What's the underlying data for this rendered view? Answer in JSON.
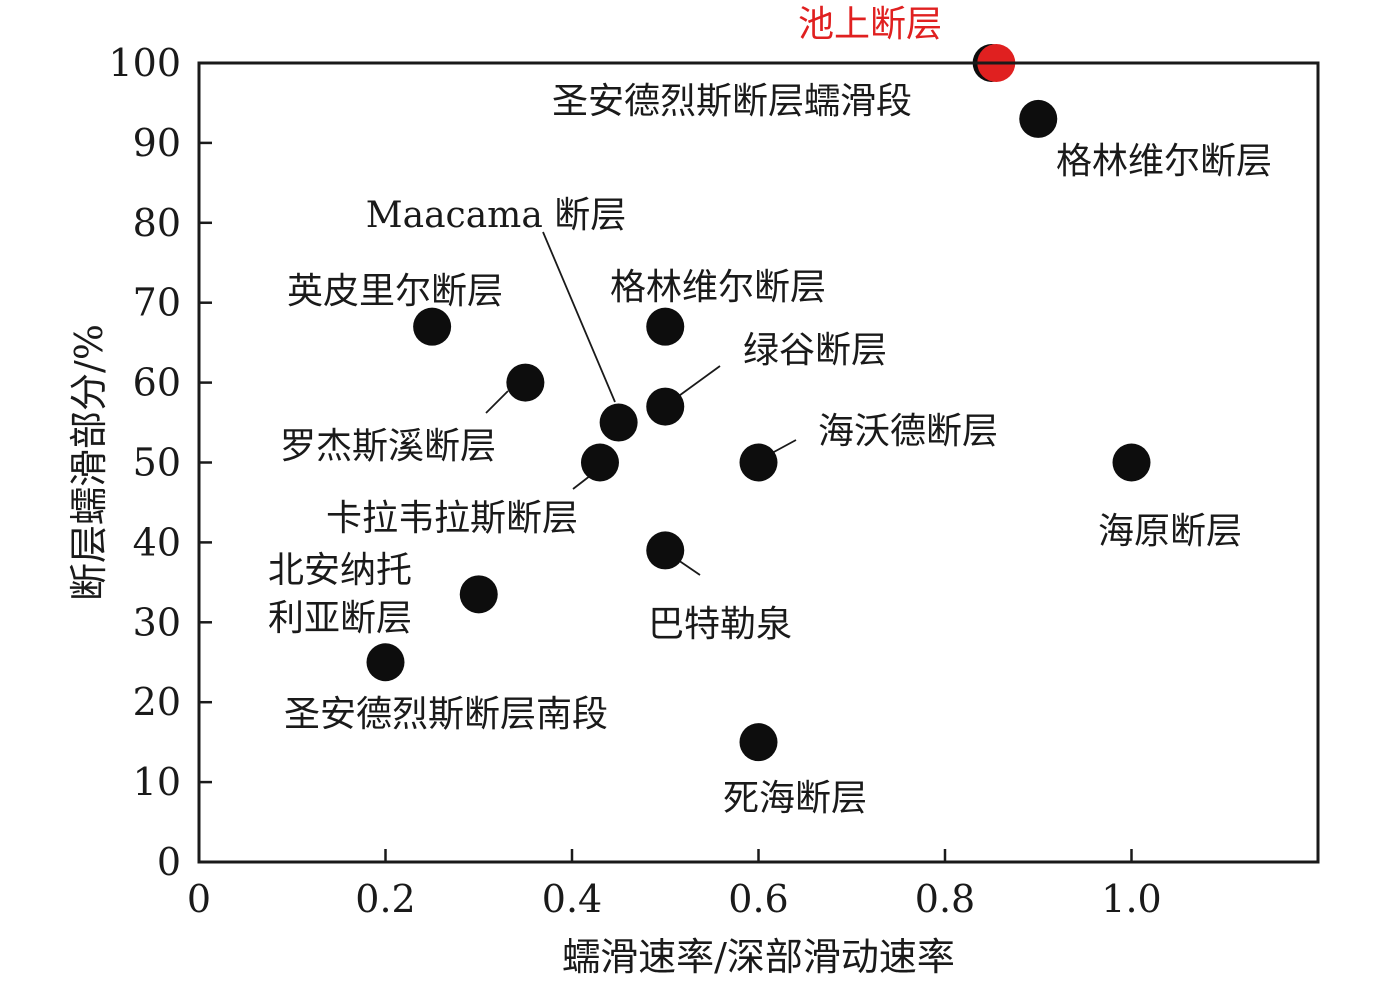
{
  "chart_data": {
    "type": "scatter",
    "title": "",
    "xlabel": "蠕滑速率/深部滑动速率",
    "ylabel": "断层蠕滑部分/%",
    "xlim": [
      0,
      1.2
    ],
    "ylim": [
      0,
      100
    ],
    "x_ticks": [
      "0",
      "0.2",
      "0.4",
      "0.6",
      "0.8",
      "1.0"
    ],
    "y_ticks": [
      "0",
      "10",
      "20",
      "30",
      "40",
      "50",
      "60",
      "70",
      "80",
      "90",
      "100"
    ],
    "grid": false,
    "legend": "none",
    "colors": {
      "default": "#0d0d0d",
      "highlight": "#e02020"
    },
    "points": [
      {
        "x": 0.85,
        "y": 100,
        "label": "圣安德烈斯断层蠕滑段"
      },
      {
        "x": 0.855,
        "y": 100,
        "label": "池上断层",
        "highlight": true
      },
      {
        "x": 0.9,
        "y": 93,
        "label": "格林维尔断层"
      },
      {
        "x": 0.45,
        "y": 55,
        "label": "Maacama 断层"
      },
      {
        "x": 0.25,
        "y": 67,
        "label": "英皮里尔断层"
      },
      {
        "x": 0.5,
        "y": 67,
        "label": "格林维尔断层"
      },
      {
        "x": 0.5,
        "y": 57,
        "label": "绿谷断层"
      },
      {
        "x": 0.35,
        "y": 60,
        "label": "罗杰斯溪断层"
      },
      {
        "x": 0.6,
        "y": 50,
        "label": "海沃德断层"
      },
      {
        "x": 1.0,
        "y": 50,
        "label": "海原断层"
      },
      {
        "x": 0.43,
        "y": 50,
        "label": "卡拉韦拉斯断层"
      },
      {
        "x": 0.5,
        "y": 39,
        "label": "巴特勒泉"
      },
      {
        "x": 0.3,
        "y": 33.5,
        "label": [
          "北安纳托",
          "利亚断层"
        ]
      },
      {
        "x": 0.2,
        "y": 25,
        "label": "圣安德烈斯断层南段"
      },
      {
        "x": 0.6,
        "y": 15,
        "label": "死海断层"
      }
    ]
  }
}
